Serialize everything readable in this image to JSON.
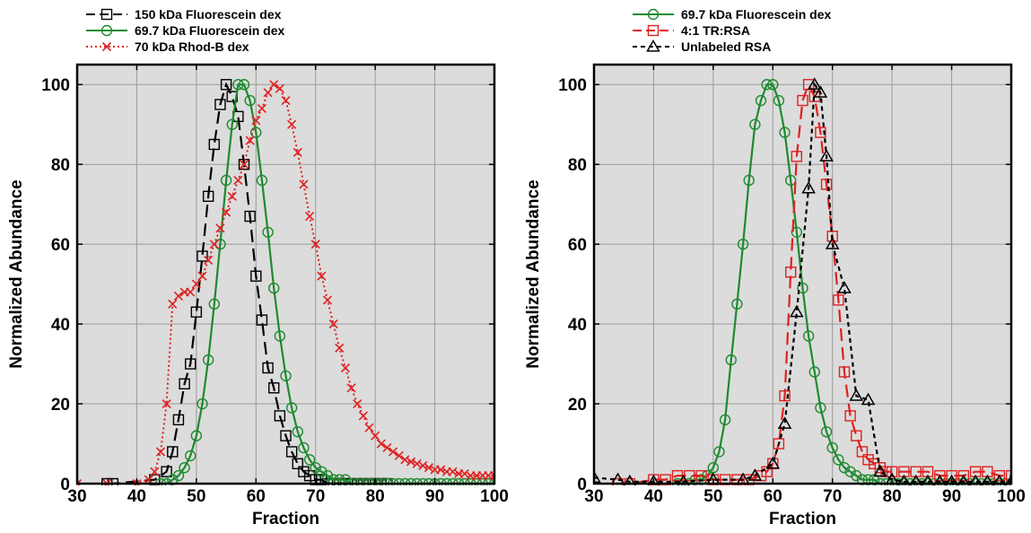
{
  "colors": {
    "plot_bg": "#dcdcdc",
    "grid": "#9a9a9a",
    "black": "#000000",
    "green": "#1e8a2e",
    "red": "#e02020"
  },
  "chart_data": [
    {
      "type": "line",
      "xlabel": "Fraction",
      "ylabel": "Normalized Abundance",
      "xlim": [
        30,
        100
      ],
      "ylim": [
        0,
        105
      ],
      "xticks": [
        30,
        40,
        50,
        60,
        70,
        80,
        90,
        100
      ],
      "yticks": [
        0,
        20,
        40,
        60,
        80,
        100
      ],
      "grid": true,
      "legend_position": "above-plot-left",
      "series": [
        {
          "name": "150 kDa Fluorescein dex",
          "color": "#000000",
          "dash": "long-dash",
          "marker": "square",
          "x": [
            35,
            36,
            43,
            45,
            46,
            47,
            48,
            49,
            50,
            51,
            52,
            53,
            54,
            55,
            56,
            57,
            58,
            59,
            60,
            61,
            62,
            63,
            64,
            65,
            66,
            67,
            68,
            69,
            70,
            71,
            72,
            73,
            74,
            75,
            76,
            77,
            78,
            79,
            80,
            81,
            82
          ],
          "y": [
            0,
            0,
            1,
            3,
            8,
            16,
            25,
            30,
            43,
            57,
            72,
            85,
            95,
            100,
            97,
            92,
            80,
            67,
            52,
            41,
            29,
            24,
            17,
            12,
            8,
            5,
            3,
            2,
            1,
            1,
            0,
            0,
            0,
            0,
            0,
            0,
            0,
            0,
            0,
            0,
            0
          ]
        },
        {
          "name": "69.7 kDa Fluorescein dex",
          "color": "#1e8a2e",
          "dash": "solid",
          "marker": "circle",
          "x": [
            44,
            45,
            46,
            47,
            48,
            49,
            50,
            51,
            52,
            53,
            54,
            55,
            56,
            57,
            58,
            59,
            60,
            61,
            62,
            63,
            64,
            65,
            66,
            67,
            68,
            69,
            70,
            71,
            72,
            73,
            74,
            75,
            76,
            77,
            78,
            79,
            80,
            81,
            82,
            83,
            84,
            85,
            86,
            87,
            88,
            89,
            90,
            91,
            92,
            93,
            94,
            95,
            96,
            97,
            98,
            99,
            100
          ],
          "y": [
            0,
            0,
            1,
            2,
            4,
            7,
            12,
            20,
            31,
            45,
            60,
            76,
            90,
            100,
            100,
            96,
            88,
            76,
            63,
            49,
            37,
            27,
            19,
            13,
            9,
            6,
            4,
            3,
            2,
            1,
            1,
            1,
            0,
            0,
            0,
            0,
            0,
            0,
            0,
            0,
            0,
            0,
            0,
            0,
            0,
            0,
            0,
            0,
            0,
            0,
            0,
            0,
            0,
            0,
            0,
            0,
            0
          ]
        },
        {
          "name": "70 kDa Rhod-B dex",
          "color": "#e02020",
          "dash": "dotted",
          "marker": "x",
          "x": [
            30,
            35,
            40,
            42,
            43,
            44,
            45,
            46,
            47,
            48,
            49,
            50,
            51,
            52,
            53,
            54,
            55,
            56,
            57,
            58,
            59,
            60,
            61,
            62,
            63,
            64,
            65,
            66,
            67,
            68,
            69,
            70,
            71,
            72,
            73,
            74,
            75,
            76,
            77,
            78,
            79,
            80,
            81,
            82,
            83,
            84,
            85,
            86,
            87,
            88,
            89,
            90,
            91,
            92,
            93,
            94,
            95,
            96,
            97,
            98,
            99,
            100
          ],
          "y": [
            0,
            0,
            0,
            1,
            3,
            8,
            20,
            45,
            47,
            48,
            48,
            50,
            52,
            56,
            60,
            64,
            68,
            72,
            76,
            80,
            86,
            91,
            94,
            98,
            100,
            99,
            96,
            90,
            83,
            75,
            67,
            60,
            52,
            46,
            40,
            34,
            29,
            24,
            20,
            17,
            14,
            12,
            10,
            9,
            8,
            7,
            6,
            5.5,
            5,
            4.5,
            4,
            3.5,
            3.5,
            3,
            3,
            2.5,
            2.5,
            2,
            2,
            2,
            2,
            2
          ]
        }
      ]
    },
    {
      "type": "line",
      "xlabel": "Fraction",
      "ylabel": "Normalized Abundance",
      "xlim": [
        30,
        100
      ],
      "ylim": [
        0,
        105
      ],
      "xticks": [
        30,
        40,
        50,
        60,
        70,
        80,
        90,
        100
      ],
      "yticks": [
        0,
        20,
        40,
        60,
        80,
        100
      ],
      "grid": true,
      "legend_position": "above-plot-left",
      "series": [
        {
          "name": "69.7 kDa Fluorescein dex",
          "color": "#1e8a2e",
          "dash": "solid",
          "marker": "circle",
          "x": [
            44,
            45,
            46,
            47,
            48,
            49,
            50,
            51,
            52,
            53,
            54,
            55,
            56,
            57,
            58,
            59,
            60,
            61,
            62,
            63,
            64,
            65,
            66,
            67,
            68,
            69,
            70,
            71,
            72,
            73,
            74,
            75,
            76,
            77,
            78,
            79,
            80,
            81,
            82,
            83,
            84,
            85,
            86,
            87,
            88,
            89,
            90,
            91,
            92,
            93,
            94,
            95,
            96,
            97,
            98,
            99,
            100
          ],
          "y": [
            0,
            0,
            0,
            1,
            1,
            2,
            4,
            8,
            16,
            31,
            45,
            60,
            76,
            90,
            96,
            100,
            100,
            96,
            88,
            76,
            63,
            49,
            37,
            28,
            19,
            13,
            9,
            6,
            4,
            3,
            2,
            1,
            1,
            1,
            0,
            0,
            0,
            0,
            0,
            0,
            0,
            0,
            0,
            0,
            0,
            0,
            0,
            0,
            0,
            0,
            0,
            0,
            0,
            0,
            0,
            0,
            0
          ]
        },
        {
          "name": "4:1 TR:RSA",
          "color": "#e02020",
          "dash": "long-dash",
          "marker": "square",
          "x": [
            34,
            36,
            40,
            42,
            44,
            46,
            48,
            50,
            52,
            54,
            56,
            58,
            59,
            60,
            61,
            62,
            63,
            64,
            65,
            66,
            67,
            68,
            69,
            70,
            71,
            72,
            73,
            74,
            75,
            76,
            77,
            78,
            79,
            80,
            82,
            84,
            86,
            88,
            90,
            92,
            94,
            96,
            98,
            100
          ],
          "y": [
            0,
            0,
            1,
            1,
            2,
            2,
            2,
            1,
            1,
            1,
            1,
            2,
            3,
            5,
            10,
            22,
            53,
            82,
            96,
            100,
            97,
            88,
            75,
            62,
            46,
            28,
            17,
            12,
            8,
            6,
            5,
            4,
            3,
            3,
            3,
            3,
            3,
            2,
            2,
            2,
            3,
            3,
            2,
            2
          ]
        },
        {
          "name": "Unlabeled RSA",
          "color": "#000000",
          "dash": "short-dash",
          "marker": "triangle",
          "x": [
            30,
            34,
            36,
            40,
            45,
            50,
            55,
            57,
            60,
            62,
            64,
            66,
            67,
            68,
            69,
            70,
            72,
            74,
            76,
            78,
            80,
            82,
            84,
            86,
            88,
            90,
            92,
            94,
            96,
            98,
            100
          ],
          "y": [
            1.5,
            1,
            0.5,
            0.5,
            0.5,
            1,
            1,
            2,
            5,
            15,
            43,
            74,
            100,
            98,
            82,
            60,
            49,
            22,
            21,
            3,
            1,
            0.5,
            0.5,
            0.5,
            0.5,
            0.5,
            0.5,
            0.5,
            0.5,
            0.5,
            0.5
          ]
        }
      ]
    }
  ]
}
